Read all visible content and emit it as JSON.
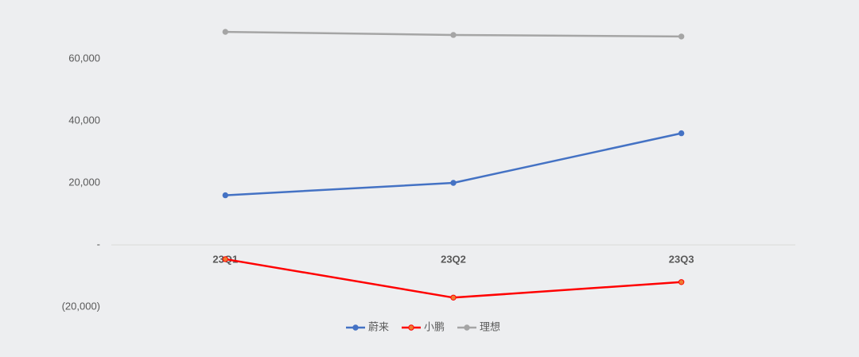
{
  "chart_data": {
    "type": "line",
    "categories": [
      "23Q1",
      "23Q2",
      "23Q3"
    ],
    "series": [
      {
        "name": "蔚来",
        "color": "#4472c4",
        "values": [
          16000,
          20000,
          36000
        ]
      },
      {
        "name": "小鹏",
        "color": "#ff0000",
        "marker_color": "#ed7d31",
        "values": [
          -4600,
          -17000,
          -12000
        ]
      },
      {
        "name": "理想",
        "color": "#a5a5a5",
        "values": [
          68700,
          67700,
          67200
        ]
      }
    ],
    "ylim": [
      -20000,
      70000
    ],
    "yticks": [
      {
        "value": -20000,
        "label": "(20,000)"
      },
      {
        "value": 0,
        "label": "-"
      },
      {
        "value": 20000,
        "label": "20,000"
      },
      {
        "value": 40000,
        "label": "40,000"
      },
      {
        "value": 60000,
        "label": "60,000"
      }
    ],
    "grid": false,
    "legend": "bottom"
  }
}
